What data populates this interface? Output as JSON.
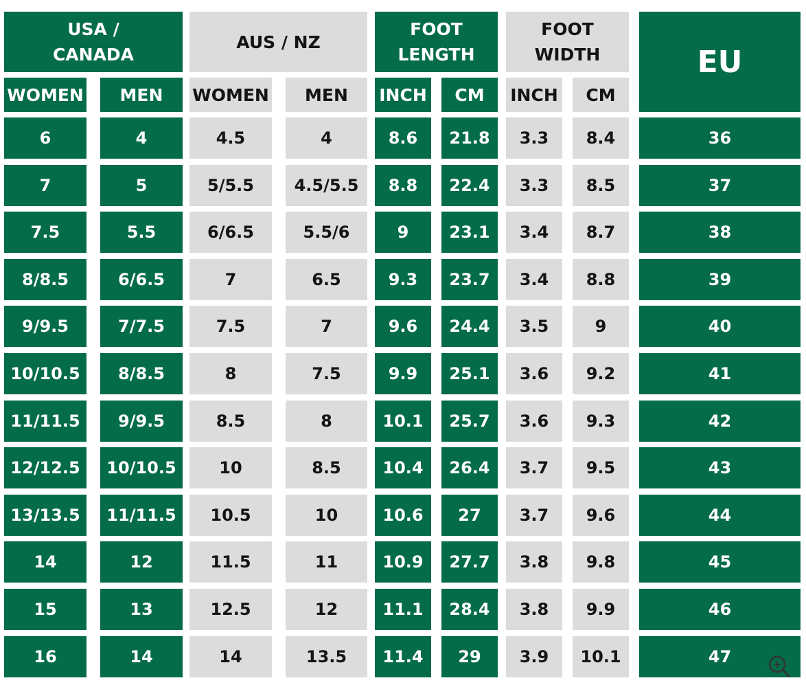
{
  "header": {
    "groups": [
      "USA / CANADA",
      "AUS / NZ",
      "FOOT LENGTH",
      "FOOT WIDTH",
      "EU"
    ],
    "subheaders": [
      "WOMEN",
      "MEN",
      "WOMEN",
      "MEN",
      "INCH",
      "CM",
      "INCH",
      "CM"
    ]
  },
  "table": {
    "rows": [
      [
        "6",
        "4",
        "4.5",
        "4",
        "8.6",
        "21.8",
        "3.3",
        "8.4",
        "36"
      ],
      [
        "7",
        "5",
        "5/5.5",
        "4.5/5.5",
        "8.8",
        "22.4",
        "3.3",
        "8.5",
        "37"
      ],
      [
        "7.5",
        "5.5",
        "6/6.5",
        "5.5/6",
        "9",
        "23.1",
        "3.4",
        "8.7",
        "38"
      ],
      [
        "8/8.5",
        "6/6.5",
        "7",
        "6.5",
        "9.3",
        "23.7",
        "3.4",
        "8.8",
        "39"
      ],
      [
        "9/9.5",
        "7/7.5",
        "7.5",
        "7",
        "9.6",
        "24.4",
        "3.5",
        "9",
        "40"
      ],
      [
        "10/10.5",
        "8/8.5",
        "8",
        "7.5",
        "9.9",
        "25.1",
        "3.6",
        "9.2",
        "41"
      ],
      [
        "11/11.5",
        "9/9.5",
        "8.5",
        "8",
        "10.1",
        "25.7",
        "3.6",
        "9.3",
        "42"
      ],
      [
        "12/12.5",
        "10/10.5",
        "10",
        "8.5",
        "10.4",
        "26.4",
        "3.7",
        "9.5",
        "43"
      ],
      [
        "13/13.5",
        "11/11.5",
        "10.5",
        "10",
        "10.6",
        "27",
        "3.7",
        "9.6",
        "44"
      ],
      [
        "14",
        "12",
        "11.5",
        "11",
        "10.9",
        "27.7",
        "3.8",
        "9.8",
        "45"
      ],
      [
        "15",
        "13",
        "12.5",
        "12",
        "11.1",
        "28.4",
        "3.8",
        "9.9",
        "46"
      ],
      [
        "16",
        "14",
        "14",
        "13.5",
        "11.4",
        "29",
        "3.9",
        "10.1",
        "47"
      ]
    ]
  }
}
